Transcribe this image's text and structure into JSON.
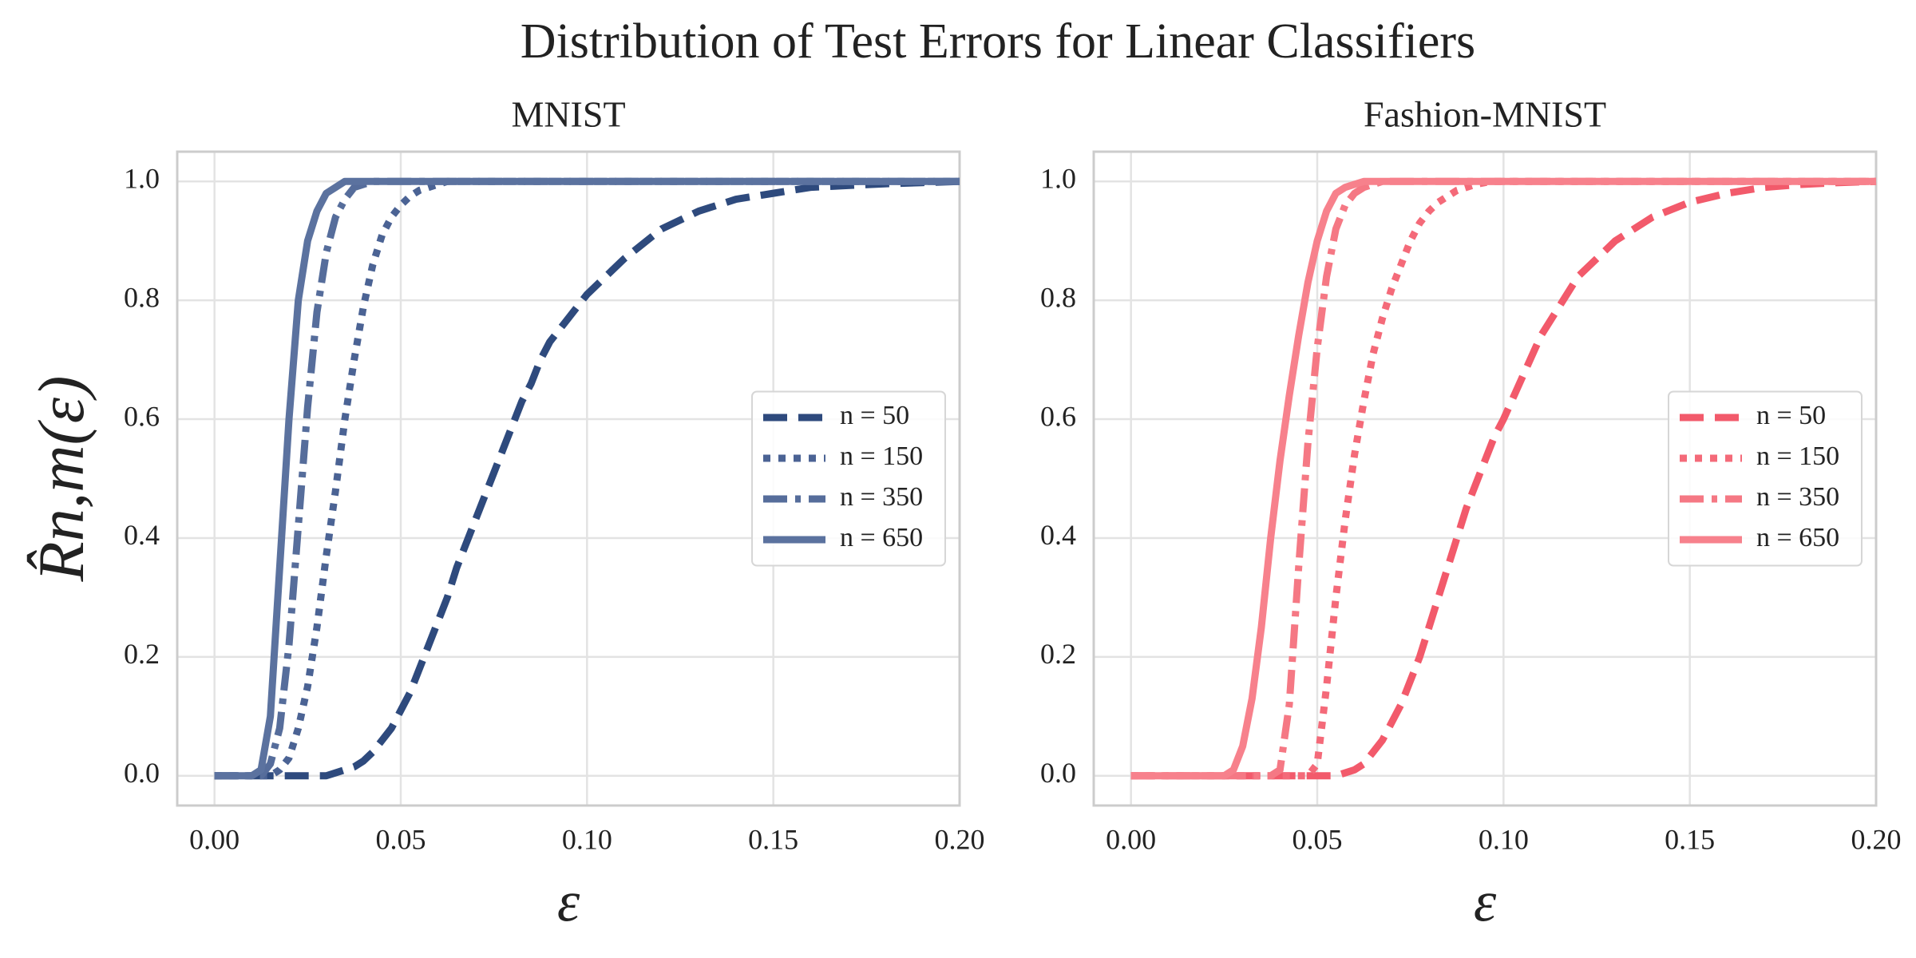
{
  "title": "Distribution of Test Errors for Linear Classifiers",
  "chart_data": [
    {
      "type": "line",
      "title": "MNIST",
      "xlabel": "ε",
      "ylabel": "R̂n,m(ε)",
      "xlim": [
        -0.01,
        0.2
      ],
      "ylim": [
        -0.05,
        1.05
      ],
      "xticks": [
        {
          "value": 0,
          "label": "0.00"
        },
        0.05,
        {
          "value": 0.1,
          "label": "0.10"
        },
        0.15,
        {
          "value": 0.2,
          "label": "0.20"
        }
      ],
      "yticks": [
        {
          "value": 0,
          "label": "0.0"
        },
        0.2,
        0.4,
        0.6,
        0.8,
        {
          "value": 1,
          "label": "1.0"
        }
      ],
      "grid": true,
      "legend": "center right",
      "x": [
        0,
        0.0025,
        0.005,
        0.0075,
        0.01,
        0.0125,
        0.015,
        0.0175,
        0.02,
        0.0225,
        0.025,
        0.0275,
        0.03,
        0.0325,
        0.035,
        0.0375,
        0.04,
        0.0425,
        0.045,
        0.0475,
        0.05,
        0.0525,
        0.055,
        0.0575,
        0.06,
        0.0625,
        0.065,
        0.0675,
        0.07,
        0.0725,
        0.075,
        0.0775,
        0.08,
        0.0825,
        0.085,
        0.0875,
        0.09,
        0.0925,
        0.095,
        0.0975,
        0.1,
        0.11,
        0.12,
        0.13,
        0.14,
        0.15,
        0.16,
        0.17,
        0.18,
        0.19,
        0.2
      ],
      "series": [
        {
          "name": "n = 50",
          "color": "#2e4a7d",
          "linestyle": "dashed",
          "values": [
            0,
            0,
            0,
            0,
            0,
            0,
            0,
            0,
            0,
            0,
            0,
            0,
            0,
            0.005,
            0.01,
            0.015,
            0.025,
            0.04,
            0.06,
            0.08,
            0.11,
            0.14,
            0.18,
            0.22,
            0.26,
            0.3,
            0.35,
            0.39,
            0.43,
            0.47,
            0.51,
            0.55,
            0.59,
            0.63,
            0.66,
            0.7,
            0.73,
            0.75,
            0.77,
            0.79,
            0.81,
            0.87,
            0.92,
            0.95,
            0.97,
            0.98,
            0.99,
            0.993,
            0.996,
            0.998,
            1
          ]
        },
        {
          "name": "n = 150",
          "color": "#4b6394",
          "linestyle": "dotted",
          "values": [
            0,
            0,
            0,
            0,
            0,
            0,
            0,
            0.01,
            0.03,
            0.08,
            0.15,
            0.25,
            0.37,
            0.48,
            0.6,
            0.7,
            0.79,
            0.86,
            0.91,
            0.94,
            0.96,
            0.975,
            0.985,
            0.99,
            0.995,
            1,
            1,
            1,
            1,
            1,
            1,
            1,
            1,
            1,
            1,
            1,
            1,
            1,
            1,
            1,
            1,
            1,
            1,
            1,
            1,
            1,
            1,
            1,
            1,
            1,
            1
          ]
        },
        {
          "name": "n = 350",
          "color": "#566d9b",
          "linestyle": "dashdot",
          "values": [
            0,
            0,
            0,
            0,
            0,
            0,
            0.02,
            0.08,
            0.22,
            0.42,
            0.62,
            0.78,
            0.88,
            0.94,
            0.97,
            0.99,
            0.995,
            1,
            1,
            1,
            1,
            1,
            1,
            1,
            1,
            1,
            1,
            1,
            1,
            1,
            1,
            1,
            1,
            1,
            1,
            1,
            1,
            1,
            1,
            1,
            1,
            1,
            1,
            1,
            1,
            1,
            1,
            1,
            1,
            1,
            1
          ]
        },
        {
          "name": "n = 650",
          "color": "#5b729f",
          "linestyle": "solid",
          "values": [
            0,
            0,
            0,
            0,
            0,
            0.01,
            0.1,
            0.35,
            0.6,
            0.8,
            0.9,
            0.95,
            0.98,
            0.99,
            1,
            1,
            1,
            1,
            1,
            1,
            1,
            1,
            1,
            1,
            1,
            1,
            1,
            1,
            1,
            1,
            1,
            1,
            1,
            1,
            1,
            1,
            1,
            1,
            1,
            1,
            1,
            1,
            1,
            1,
            1,
            1,
            1,
            1,
            1,
            1,
            1
          ]
        }
      ]
    },
    {
      "type": "line",
      "title": "Fashion-MNIST",
      "xlabel": "ε",
      "xlim": [
        -0.01,
        0.2
      ],
      "ylim": [
        -0.05,
        1.05
      ],
      "xticks": [
        {
          "value": 0,
          "label": "0.00"
        },
        0.05,
        {
          "value": 0.1,
          "label": "0.10"
        },
        0.15,
        {
          "value": 0.2,
          "label": "0.20"
        }
      ],
      "yticks": [
        {
          "value": 0,
          "label": "0.0"
        },
        0.2,
        0.4,
        0.6,
        0.8,
        {
          "value": 1,
          "label": "1.0"
        }
      ],
      "grid": true,
      "legend": "center right",
      "x": [
        0,
        0.0025,
        0.005,
        0.0075,
        0.01,
        0.0125,
        0.015,
        0.0175,
        0.02,
        0.0225,
        0.025,
        0.0275,
        0.03,
        0.0325,
        0.035,
        0.0375,
        0.04,
        0.0425,
        0.045,
        0.0475,
        0.05,
        0.0525,
        0.055,
        0.0575,
        0.06,
        0.0625,
        0.065,
        0.0675,
        0.07,
        0.0725,
        0.075,
        0.0775,
        0.08,
        0.0825,
        0.085,
        0.0875,
        0.09,
        0.0925,
        0.095,
        0.0975,
        0.1,
        0.11,
        0.12,
        0.13,
        0.14,
        0.15,
        0.16,
        0.17,
        0.18,
        0.19,
        0.2
      ],
      "series": [
        {
          "name": "n = 50",
          "color": "#f25a6b",
          "linestyle": "dashed",
          "values": [
            0,
            0,
            0,
            0,
            0,
            0,
            0,
            0,
            0,
            0,
            0,
            0,
            0,
            0,
            0,
            0,
            0,
            0,
            0,
            0,
            0,
            0,
            0,
            0.005,
            0.01,
            0.02,
            0.04,
            0.06,
            0.09,
            0.12,
            0.16,
            0.2,
            0.25,
            0.3,
            0.35,
            0.4,
            0.45,
            0.49,
            0.53,
            0.57,
            0.6,
            0.74,
            0.84,
            0.9,
            0.94,
            0.965,
            0.98,
            0.99,
            0.995,
            0.998,
            1
          ]
        },
        {
          "name": "n = 150",
          "color": "#f46a79",
          "linestyle": "dotted",
          "values": [
            0,
            0,
            0,
            0,
            0,
            0,
            0,
            0,
            0,
            0,
            0,
            0,
            0,
            0,
            0,
            0,
            0,
            0,
            0,
            0,
            0.02,
            0.15,
            0.3,
            0.43,
            0.54,
            0.63,
            0.71,
            0.77,
            0.82,
            0.86,
            0.9,
            0.93,
            0.95,
            0.965,
            0.975,
            0.985,
            0.99,
            0.995,
            0.998,
            1,
            1,
            1,
            1,
            1,
            1,
            1,
            1,
            1,
            1,
            1,
            1
          ]
        },
        {
          "name": "n = 350",
          "color": "#f57884",
          "linestyle": "dashdot",
          "values": [
            0,
            0,
            0,
            0,
            0,
            0,
            0,
            0,
            0,
            0,
            0,
            0,
            0,
            0,
            0,
            0,
            0.01,
            0.12,
            0.35,
            0.56,
            0.72,
            0.84,
            0.92,
            0.96,
            0.98,
            0.99,
            0.995,
            1,
            1,
            1,
            1,
            1,
            1,
            1,
            1,
            1,
            1,
            1,
            1,
            1,
            1,
            1,
            1,
            1,
            1,
            1,
            1,
            1,
            1,
            1,
            1
          ]
        },
        {
          "name": "n = 650",
          "color": "#f7818c",
          "linestyle": "solid",
          "values": [
            0,
            0,
            0,
            0,
            0,
            0,
            0,
            0,
            0,
            0,
            0,
            0.01,
            0.05,
            0.13,
            0.25,
            0.4,
            0.53,
            0.64,
            0.74,
            0.83,
            0.9,
            0.95,
            0.98,
            0.99,
            0.995,
            1,
            1,
            1,
            1,
            1,
            1,
            1,
            1,
            1,
            1,
            1,
            1,
            1,
            1,
            1,
            1,
            1,
            1,
            1,
            1,
            1,
            1,
            1,
            1,
            1,
            1
          ]
        }
      ]
    }
  ]
}
